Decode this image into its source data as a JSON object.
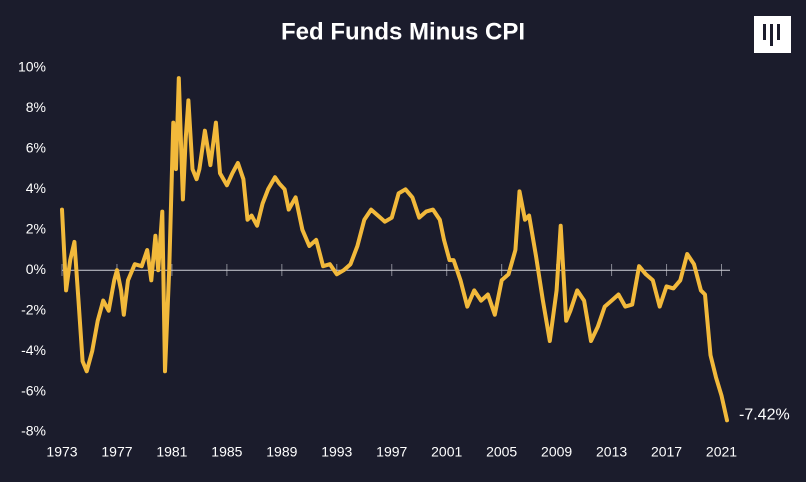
{
  "chart_data": {
    "type": "line",
    "title": "Fed Funds Minus CPI",
    "x": [
      1973.0,
      1973.3,
      1973.6,
      1973.9,
      1974.2,
      1974.5,
      1974.8,
      1975.2,
      1975.6,
      1976.0,
      1976.4,
      1976.8,
      1977.0,
      1977.3,
      1977.5,
      1977.8,
      1978.3,
      1978.8,
      1979.2,
      1979.5,
      1979.8,
      1980.0,
      1980.3,
      1980.5,
      1980.8,
      1981.1,
      1981.3,
      1981.5,
      1981.8,
      1982.0,
      1982.2,
      1982.5,
      1982.8,
      1983.0,
      1983.4,
      1983.8,
      1984.2,
      1984.5,
      1985.0,
      1985.4,
      1985.8,
      1986.2,
      1986.5,
      1986.8,
      1987.2,
      1987.6,
      1988.0,
      1988.5,
      1988.8,
      1989.2,
      1989.5,
      1990.0,
      1990.5,
      1991.0,
      1991.5,
      1992.0,
      1992.5,
      1993.0,
      1993.5,
      1994.0,
      1994.5,
      1995.0,
      1995.5,
      1996.0,
      1996.5,
      1997.0,
      1997.5,
      1998.0,
      1998.5,
      1999.0,
      1999.5,
      2000.0,
      2000.5,
      2000.8,
      2001.2,
      2001.5,
      2002.0,
      2002.5,
      2003.0,
      2003.5,
      2004.0,
      2004.5,
      2005.0,
      2005.5,
      2006.0,
      2006.3,
      2006.7,
      2007.0,
      2007.5,
      2008.0,
      2008.5,
      2009.0,
      2009.3,
      2009.7,
      2010.0,
      2010.5,
      2011.0,
      2011.5,
      2012.0,
      2012.5,
      2013.0,
      2013.5,
      2014.0,
      2014.5,
      2015.0,
      2015.5,
      2016.0,
      2016.5,
      2017.0,
      2017.5,
      2018.0,
      2018.5,
      2019.0,
      2019.5,
      2019.8,
      2020.2,
      2020.6,
      2021.0,
      2021.4
    ],
    "values": [
      3.0,
      -1.0,
      0.5,
      1.4,
      -1.5,
      -4.5,
      -5.0,
      -4.0,
      -2.5,
      -1.5,
      -2.0,
      -0.5,
      0.0,
      -1.0,
      -2.2,
      -0.5,
      0.3,
      0.2,
      1.0,
      -0.5,
      1.7,
      0.0,
      2.9,
      -5.0,
      0.0,
      7.3,
      5.0,
      9.5,
      3.5,
      6.5,
      8.4,
      5.0,
      4.5,
      5.0,
      6.9,
      5.2,
      7.3,
      4.8,
      4.2,
      4.8,
      5.3,
      4.5,
      2.5,
      2.7,
      2.2,
      3.3,
      4.0,
      4.6,
      4.3,
      4.0,
      3.0,
      3.6,
      2.0,
      1.2,
      1.5,
      0.2,
      0.3,
      -0.2,
      0.0,
      0.3,
      1.2,
      2.5,
      3.0,
      2.7,
      2.4,
      2.6,
      3.8,
      4.0,
      3.6,
      2.6,
      2.9,
      3.0,
      2.5,
      1.5,
      0.5,
      0.5,
      -0.5,
      -1.8,
      -1.0,
      -1.5,
      -1.2,
      -2.2,
      -0.5,
      -0.2,
      1.0,
      3.9,
      2.5,
      2.7,
      0.7,
      -1.5,
      -3.5,
      -1.0,
      2.2,
      -2.5,
      -2.0,
      -1.0,
      -1.5,
      -3.5,
      -2.8,
      -1.8,
      -1.5,
      -1.2,
      -1.8,
      -1.7,
      0.2,
      -0.2,
      -0.5,
      -1.8,
      -0.8,
      -0.9,
      -0.5,
      0.8,
      0.3,
      -1.0,
      -1.2,
      -4.2,
      -5.3,
      -6.2,
      -7.42
    ],
    "annotation": "-7.42%",
    "color": "#f2b93b",
    "xlim": [
      1973,
      2021.4
    ],
    "xticks": [
      1973,
      1977,
      1981,
      1985,
      1989,
      1993,
      1997,
      2001,
      2005,
      2009,
      2013,
      2017,
      2021
    ],
    "ylim": [
      -8,
      10
    ],
    "yticks": [
      {
        "value": -8,
        "label": "-8%"
      },
      {
        "value": -6,
        "label": "-6%"
      },
      {
        "value": -4,
        "label": "-4%"
      },
      {
        "value": -2,
        "label": "-2%"
      },
      {
        "value": 0,
        "label": "0%"
      },
      {
        "value": 2,
        "label": "2%"
      },
      {
        "value": 4,
        "label": "4%"
      },
      {
        "value": 6,
        "label": "6%"
      },
      {
        "value": 8,
        "label": "8%"
      },
      {
        "value": 10,
        "label": "10%"
      }
    ]
  }
}
